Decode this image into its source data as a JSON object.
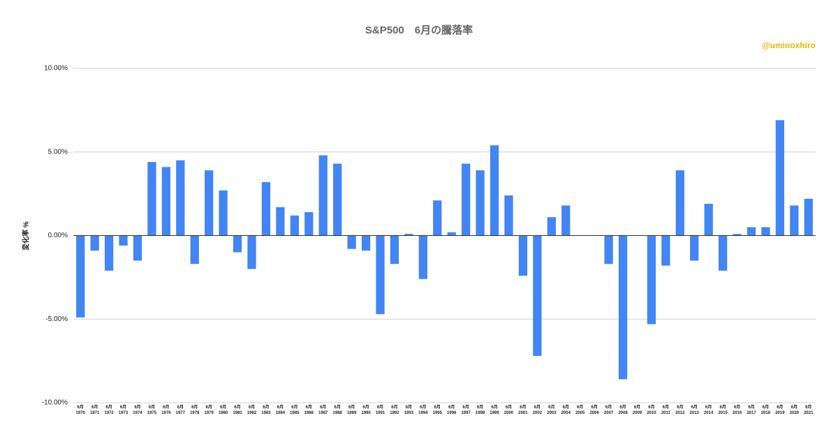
{
  "chart_data": {
    "type": "bar",
    "title": "S&P500　6月の騰落率",
    "annotation": "@uminoxhiro",
    "y_label": "変化率 %",
    "categories": [
      "6月\n1970",
      "6月\n1971",
      "6月\n1972",
      "6月\n1973",
      "6月\n1974",
      "6月\n1975",
      "6月\n1976",
      "6月\n1977",
      "6月\n1978",
      "6月\n1979",
      "6月\n1980",
      "6月\n1981",
      "6月\n1982",
      "6月\n1983",
      "6月\n1984",
      "6月\n1985",
      "6月\n1986",
      "6月\n1987",
      "6月\n1988",
      "6月\n1989",
      "6月\n1990",
      "6月\n1991",
      "6月\n1992",
      "6月\n1993",
      "6月\n1994",
      "6月\n1995",
      "6月\n1996",
      "6月\n1997",
      "6月\n1998",
      "6月\n1999",
      "6月\n2000",
      "6月\n2001",
      "6月\n2002",
      "6月\n2003",
      "6月\n2004",
      "6月\n2005",
      "6月\n2006",
      "6月\n2007",
      "6月\n2008",
      "6月\n2009",
      "6月\n2010",
      "6月\n2011",
      "6月\n2012",
      "6月\n2013",
      "6月\n2014",
      "6月\n2015",
      "6月\n2016",
      "6月\n2017",
      "6月\n2018",
      "6月\n2019",
      "6月\n2020",
      "6月\n2021"
    ],
    "values": [
      -4.9,
      -0.9,
      -2.1,
      -0.6,
      -1.5,
      4.4,
      4.1,
      4.5,
      -1.7,
      3.9,
      2.7,
      -1.0,
      -2.0,
      3.2,
      1.7,
      1.2,
      1.4,
      4.8,
      4.3,
      -0.8,
      -0.9,
      -4.7,
      -1.7,
      0.1,
      -2.6,
      2.1,
      0.2,
      4.3,
      3.9,
      5.4,
      2.4,
      -2.4,
      -7.2,
      1.1,
      1.8,
      0,
      0,
      -1.7,
      -8.6,
      0,
      -5.3,
      -1.8,
      3.9,
      -1.5,
      1.9,
      -2.1,
      0.1,
      0.5,
      0.5,
      6.9,
      1.8,
      2.2
    ],
    "color": "#4285f4",
    "annotation_color": "#f1b500",
    "ylim": [
      -10,
      10
    ],
    "yticks": [
      {
        "value": -10,
        "label": "-10.00%"
      },
      {
        "value": -5,
        "label": "-5.00%"
      },
      {
        "value": 0,
        "label": "0.00%"
      },
      {
        "value": 5,
        "label": "5.00%"
      },
      {
        "value": 10,
        "label": "10.00%"
      }
    ],
    "grid": true
  }
}
